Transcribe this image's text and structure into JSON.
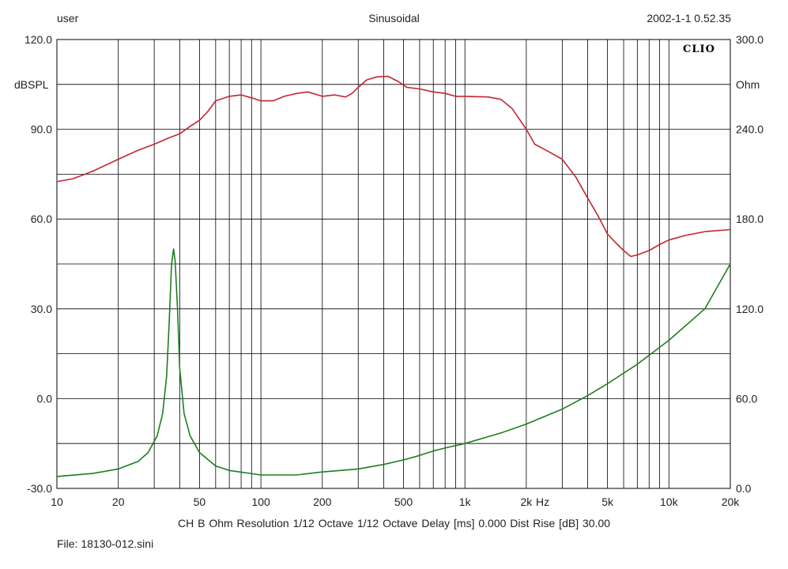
{
  "header": {
    "user": "user",
    "mode": "Sinusoidal",
    "datetime": "2002-1-1 0.52.35"
  },
  "logo": "CLIO",
  "footer": {
    "info": "CH B   Ohm   Resolution 1/12 Octave   1/12 Octave   Delay [ms] 0.000   Dist Rise [dB] 30.00",
    "file": "File: 18130-012.sini"
  },
  "chart_data": {
    "type": "line",
    "x_scale": "log",
    "xlim": [
      10,
      20000
    ],
    "x_ticks": [
      10,
      20,
      50,
      100,
      200,
      500,
      1000,
      2000,
      5000,
      10000,
      20000
    ],
    "x_tick_labels": [
      "10",
      "20",
      "50",
      "100",
      "200",
      "500",
      "1k",
      "2k",
      "5k",
      "10k",
      "20k"
    ],
    "x_unit": "Hz",
    "ylabel_left": "dBSPL",
    "ylim_left": [
      -30,
      120
    ],
    "y_ticks_left": [
      "120.0",
      "90.0",
      "60.0",
      "30.0",
      "0.0",
      "-30.0"
    ],
    "ylabel_right": "Ohm",
    "ylim_right": [
      0,
      300
    ],
    "y_ticks_right": [
      "300.0",
      "240.0",
      "180.0",
      "120.0",
      "60.0",
      "0.0"
    ],
    "grid": true,
    "series": [
      {
        "axis": "left",
        "color": "#c0282e",
        "points": [
          [
            10,
            72.5
          ],
          [
            12,
            73.5
          ],
          [
            15,
            76
          ],
          [
            20,
            80
          ],
          [
            25,
            83
          ],
          [
            30,
            85
          ],
          [
            35,
            87
          ],
          [
            40,
            88.5
          ],
          [
            45,
            91
          ],
          [
            50,
            93
          ],
          [
            55,
            96
          ],
          [
            60,
            99.5
          ],
          [
            70,
            101
          ],
          [
            80,
            101.5
          ],
          [
            90,
            100.5
          ],
          [
            100,
            99.5
          ],
          [
            115,
            99.5
          ],
          [
            130,
            101
          ],
          [
            150,
            102
          ],
          [
            170,
            102.5
          ],
          [
            200,
            101
          ],
          [
            230,
            101.5
          ],
          [
            260,
            100.8
          ],
          [
            280,
            102
          ],
          [
            300,
            104
          ],
          [
            330,
            106.5
          ],
          [
            370,
            107.5
          ],
          [
            420,
            107.7
          ],
          [
            470,
            106
          ],
          [
            520,
            104
          ],
          [
            600,
            103.5
          ],
          [
            700,
            102.5
          ],
          [
            800,
            102
          ],
          [
            900,
            101
          ],
          [
            1000,
            101
          ],
          [
            1300,
            100.8
          ],
          [
            1500,
            100
          ],
          [
            1700,
            97
          ],
          [
            2000,
            90
          ],
          [
            2200,
            85
          ],
          [
            2500,
            83
          ],
          [
            3000,
            80
          ],
          [
            3500,
            74
          ],
          [
            4000,
            67
          ],
          [
            4500,
            61
          ],
          [
            5000,
            55
          ],
          [
            5500,
            52
          ],
          [
            6000,
            49.5
          ],
          [
            6500,
            47.5
          ],
          [
            7000,
            48
          ],
          [
            8000,
            49.5
          ],
          [
            9000,
            51.5
          ],
          [
            10000,
            53
          ],
          [
            12000,
            54.5
          ],
          [
            15000,
            55.8
          ],
          [
            20000,
            56.5
          ]
        ]
      },
      {
        "axis": "right",
        "color": "#1e7d1e",
        "points": [
          [
            10,
            8
          ],
          [
            15,
            10
          ],
          [
            20,
            13
          ],
          [
            25,
            18
          ],
          [
            28,
            24
          ],
          [
            31,
            35
          ],
          [
            33,
            50
          ],
          [
            34.5,
            75
          ],
          [
            35.5,
            110
          ],
          [
            36.5,
            150
          ],
          [
            37.3,
            160
          ],
          [
            38,
            152
          ],
          [
            39,
            120
          ],
          [
            40,
            80
          ],
          [
            42,
            50
          ],
          [
            45,
            35
          ],
          [
            50,
            24
          ],
          [
            60,
            15
          ],
          [
            70,
            12
          ],
          [
            100,
            9
          ],
          [
            150,
            9
          ],
          [
            200,
            11
          ],
          [
            300,
            13
          ],
          [
            400,
            16
          ],
          [
            500,
            19
          ],
          [
            600,
            22
          ],
          [
            700,
            25
          ],
          [
            800,
            27
          ],
          [
            1000,
            30
          ],
          [
            1500,
            37
          ],
          [
            2000,
            43
          ],
          [
            3000,
            53
          ],
          [
            4000,
            62
          ],
          [
            5000,
            70
          ],
          [
            7000,
            83
          ],
          [
            10000,
            99
          ],
          [
            15000,
            120
          ],
          [
            20000,
            150
          ]
        ]
      }
    ]
  }
}
